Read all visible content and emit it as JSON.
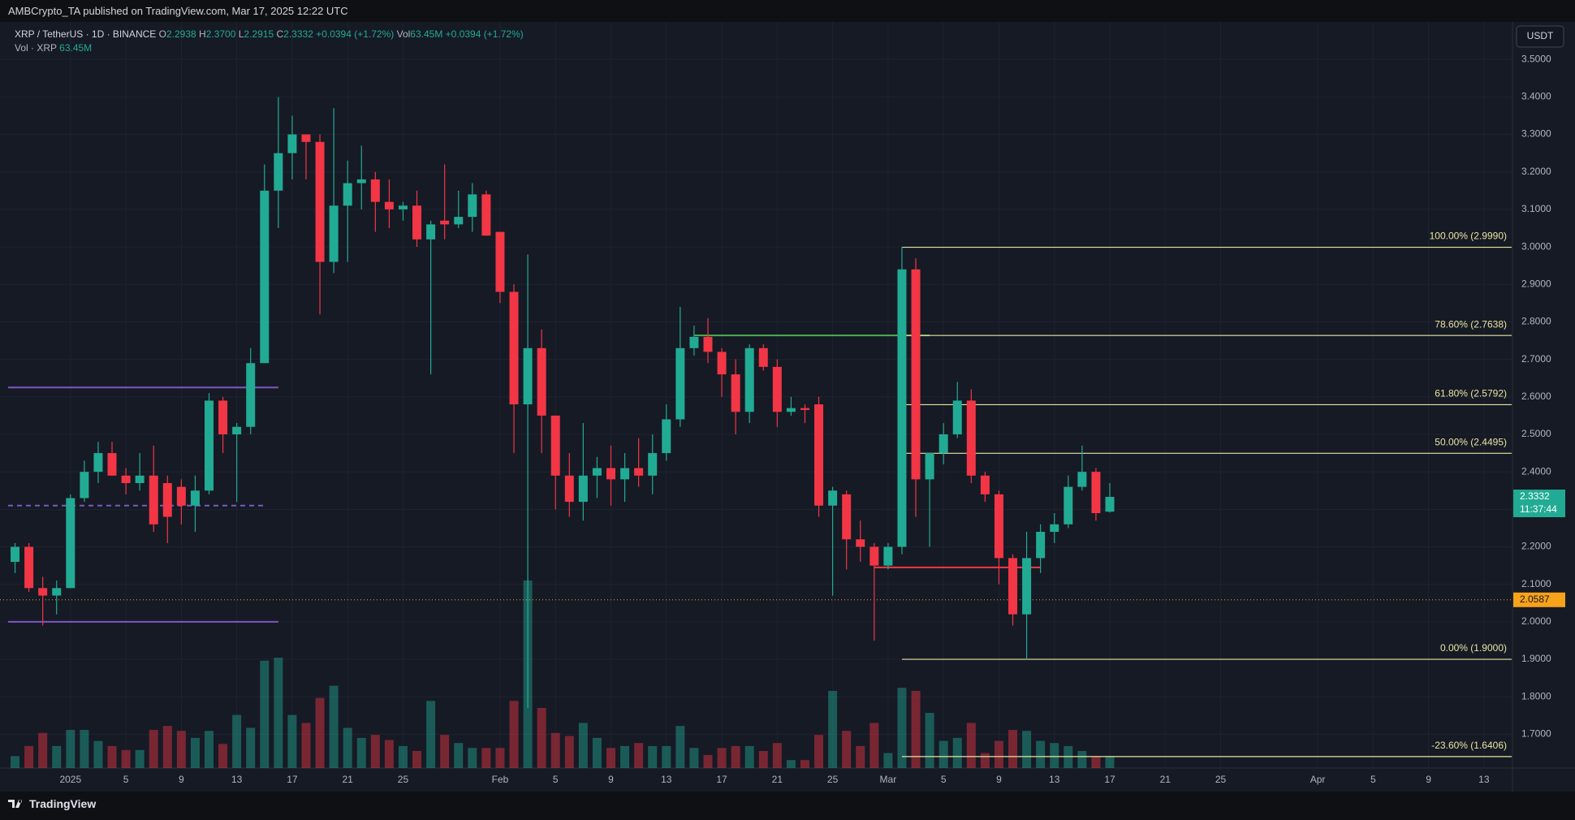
{
  "header": "AMBCrypto_TA published on TradingView.com, Mar 17, 2025 12:22 UTC",
  "footer": "TradingView",
  "chart_data": {
    "type": "candlestick",
    "legend": {
      "symbol": "XRP / TetherUS · 1D · BINANCE",
      "ohlc": [
        {
          "key": "O",
          "value": "2.2938"
        },
        {
          "key": "H",
          "value": "2.3700"
        },
        {
          "key": "L",
          "value": "2.2915"
        },
        {
          "key": "C",
          "value": "2.3332"
        }
      ],
      "change": "+0.0394 (+1.72%)",
      "volume_key": "Vol",
      "volume_value": "63.45M",
      "volume_change": "+0.0394 (+1.72%)",
      "volume_title": "Vol · XRP",
      "volume_title_value": "63.45M"
    },
    "currency": "USDT",
    "x": [
      "2024-12-28",
      "2024-12-29",
      "2024-12-30",
      "2024-12-31",
      "2025-01-01",
      "2025-01-02",
      "2025-01-03",
      "2025-01-04",
      "2025-01-05",
      "2025-01-06",
      "2025-01-07",
      "2025-01-08",
      "2025-01-09",
      "2025-01-10",
      "2025-01-11",
      "2025-01-12",
      "2025-01-13",
      "2025-01-14",
      "2025-01-15",
      "2025-01-16",
      "2025-01-17",
      "2025-01-18",
      "2025-01-19",
      "2025-01-20",
      "2025-01-21",
      "2025-01-22",
      "2025-01-23",
      "2025-01-24",
      "2025-01-25",
      "2025-01-26",
      "2025-01-27",
      "2025-01-28",
      "2025-01-29",
      "2025-01-30",
      "2025-01-31",
      "2025-02-01",
      "2025-02-02",
      "2025-02-03",
      "2025-02-04",
      "2025-02-05",
      "2025-02-06",
      "2025-02-07",
      "2025-02-08",
      "2025-02-09",
      "2025-02-10",
      "2025-02-11",
      "2025-02-12",
      "2025-02-13",
      "2025-02-14",
      "2025-02-15",
      "2025-02-16",
      "2025-02-17",
      "2025-02-18",
      "2025-02-19",
      "2025-02-20",
      "2025-02-21",
      "2025-02-22",
      "2025-02-23",
      "2025-02-24",
      "2025-02-25",
      "2025-02-26",
      "2025-02-27",
      "2025-02-28",
      "2025-03-01",
      "2025-03-02",
      "2025-03-03",
      "2025-03-04",
      "2025-03-05",
      "2025-03-06",
      "2025-03-07",
      "2025-03-08",
      "2025-03-09",
      "2025-03-10",
      "2025-03-11",
      "2025-03-12",
      "2025-03-13",
      "2025-03-14",
      "2025-03-15",
      "2025-03-16",
      "2025-03-17"
    ],
    "open": [
      2.16,
      2.2,
      2.09,
      2.07,
      2.09,
      2.33,
      2.4,
      2.45,
      2.39,
      2.37,
      2.39,
      2.37,
      2.36,
      2.31,
      2.35,
      2.59,
      2.5,
      2.52,
      2.69,
      3.15,
      3.25,
      3.3,
      3.28,
      2.96,
      3.11,
      3.17,
      3.18,
      3.12,
      3.1,
      3.11,
      3.02,
      3.07,
      3.06,
      3.08,
      3.14,
      3.04,
      2.88,
      2.58,
      2.73,
      2.55,
      2.39,
      2.32,
      2.39,
      2.41,
      2.38,
      2.41,
      2.39,
      2.45,
      2.54,
      2.73,
      2.76,
      2.72,
      2.66,
      2.56,
      2.73,
      2.68,
      2.56,
      2.57,
      2.58,
      2.31,
      2.34,
      2.22,
      2.2,
      2.15,
      2.2,
      2.94,
      2.38,
      2.45,
      2.5,
      2.59,
      2.39,
      2.34,
      2.17,
      2.02,
      2.17,
      2.24,
      2.26,
      2.36,
      2.4,
      2.2938
    ],
    "high": [
      2.21,
      2.21,
      2.12,
      2.11,
      2.34,
      2.43,
      2.48,
      2.48,
      2.41,
      2.45,
      2.47,
      2.39,
      2.38,
      2.39,
      2.61,
      2.6,
      2.53,
      2.73,
      3.22,
      3.4,
      3.35,
      3.3,
      3.3,
      3.37,
      3.23,
      3.27,
      3.2,
      3.18,
      3.12,
      3.15,
      3.07,
      3.22,
      3.15,
      3.17,
      3.15,
      3.04,
      2.9,
      2.98,
      2.78,
      2.55,
      2.45,
      2.53,
      2.44,
      2.47,
      2.45,
      2.49,
      2.5,
      2.58,
      2.84,
      2.79,
      2.81,
      2.73,
      2.7,
      2.74,
      2.74,
      2.7,
      2.6,
      2.58,
      2.6,
      2.36,
      2.35,
      2.27,
      2.21,
      2.21,
      3.0,
      2.97,
      2.45,
      2.53,
      2.64,
      2.62,
      2.4,
      2.35,
      2.18,
      2.24,
      2.26,
      2.29,
      2.39,
      2.47,
      2.41,
      2.37
    ],
    "low": [
      2.13,
      2.08,
      1.99,
      2.02,
      2.09,
      2.32,
      2.37,
      2.39,
      2.34,
      2.35,
      2.24,
      2.21,
      2.26,
      2.24,
      2.34,
      2.45,
      2.32,
      2.5,
      2.69,
      3.05,
      3.18,
      3.18,
      2.82,
      2.93,
      2.96,
      3.1,
      3.04,
      3.05,
      3.07,
      3.0,
      2.66,
      3.02,
      3.05,
      3.04,
      3.03,
      2.85,
      2.45,
      1.77,
      2.45,
      2.3,
      2.28,
      2.27,
      2.33,
      2.31,
      2.32,
      2.36,
      2.34,
      2.43,
      2.52,
      2.71,
      2.69,
      2.6,
      2.5,
      2.53,
      2.67,
      2.52,
      2.55,
      2.53,
      2.28,
      2.07,
      2.14,
      2.16,
      1.95,
      2.14,
      2.18,
      2.28,
      2.2,
      2.42,
      2.49,
      2.37,
      2.32,
      2.1,
      1.99,
      1.9,
      2.13,
      2.21,
      2.25,
      2.35,
      2.27,
      2.2915
    ],
    "close": [
      2.2,
      2.09,
      2.07,
      2.09,
      2.33,
      2.4,
      2.45,
      2.39,
      2.37,
      2.39,
      2.26,
      2.28,
      2.31,
      2.35,
      2.59,
      2.5,
      2.52,
      2.69,
      3.15,
      3.25,
      3.3,
      3.28,
      2.96,
      3.11,
      3.17,
      3.18,
      3.12,
      3.1,
      3.11,
      3.02,
      3.06,
      3.06,
      3.08,
      3.14,
      3.03,
      2.88,
      2.58,
      2.73,
      2.55,
      2.39,
      2.32,
      2.39,
      2.41,
      2.38,
      2.41,
      2.39,
      2.45,
      2.54,
      2.73,
      2.76,
      2.72,
      2.66,
      2.56,
      2.73,
      2.68,
      2.56,
      2.57,
      2.565,
      2.31,
      2.35,
      2.22,
      2.2,
      2.15,
      2.2,
      2.94,
      2.38,
      2.45,
      2.5,
      2.59,
      2.39,
      2.34,
      2.17,
      2.02,
      2.17,
      2.24,
      2.26,
      2.36,
      2.4,
      2.29,
      2.3332
    ],
    "volume": [
      63,
      116,
      185,
      116,
      201,
      201,
      143,
      116,
      95,
      95,
      201,
      222,
      196,
      159,
      196,
      127,
      280,
      212,
      566,
      582,
      280,
      238,
      370,
      434,
      212,
      159,
      175,
      148,
      116,
      90,
      354,
      175,
      132,
      106,
      106,
      106,
      354,
      989,
      317,
      185,
      169,
      238,
      159,
      106,
      116,
      132,
      116,
      116,
      222,
      106,
      69,
      106,
      116,
      116,
      90,
      132,
      42,
      42,
      175,
      407,
      196,
      116,
      238,
      79,
      423,
      407,
      291,
      143,
      159,
      238,
      79,
      143,
      201,
      196,
      143,
      132,
      116,
      90,
      63,
      63.45
    ],
    "colors": {
      "up": "#22ab94",
      "down": "#f23645"
    },
    "xlim": [
      "2024-12-27T12:00Z",
      "2025-04-15T00:00Z"
    ],
    "xticks": [
      {
        "value": "2025-01-01",
        "label": "2025"
      },
      {
        "value": "2025-01-05",
        "label": "5"
      },
      {
        "value": "2025-01-09",
        "label": "9"
      },
      {
        "value": "2025-01-13",
        "label": "13"
      },
      {
        "value": "2025-01-17",
        "label": "17"
      },
      {
        "value": "2025-01-21",
        "label": "21"
      },
      {
        "value": "2025-01-25",
        "label": "25"
      },
      {
        "value": "2025-02-01",
        "label": "Feb"
      },
      {
        "value": "2025-02-05",
        "label": "5"
      },
      {
        "value": "2025-02-09",
        "label": "9"
      },
      {
        "value": "2025-02-13",
        "label": "13"
      },
      {
        "value": "2025-02-17",
        "label": "17"
      },
      {
        "value": "2025-02-21",
        "label": "21"
      },
      {
        "value": "2025-02-25",
        "label": "25"
      },
      {
        "value": "2025-03-01",
        "label": "Mar"
      },
      {
        "value": "2025-03-05",
        "label": "5"
      },
      {
        "value": "2025-03-09",
        "label": "9"
      },
      {
        "value": "2025-03-13",
        "label": "13"
      },
      {
        "value": "2025-03-17",
        "label": "17"
      },
      {
        "value": "2025-03-21",
        "label": "21"
      },
      {
        "value": "2025-03-25",
        "label": "25"
      },
      {
        "value": "2025-04-01",
        "label": "Apr"
      },
      {
        "value": "2025-04-05",
        "label": "5"
      },
      {
        "value": "2025-04-09",
        "label": "9"
      },
      {
        "value": "2025-04-13",
        "label": "13"
      }
    ],
    "ylim": [
      1.61,
      3.6
    ],
    "yticks": [
      {
        "value": 1.7,
        "label": "1.7000"
      },
      {
        "value": 1.8,
        "label": "1.8000"
      },
      {
        "value": 1.9,
        "label": "1.9000"
      },
      {
        "value": 2.0,
        "label": "2.0000"
      },
      {
        "value": 2.1,
        "label": "2.1000"
      },
      {
        "value": 2.2,
        "label": "2.2000"
      },
      {
        "value": 2.3,
        "label": "2.3000"
      },
      {
        "value": 2.4,
        "label": "2.4000"
      },
      {
        "value": 2.5,
        "label": "2.5000"
      },
      {
        "value": 2.6,
        "label": "2.6000"
      },
      {
        "value": 2.7,
        "label": "2.7000"
      },
      {
        "value": 2.8,
        "label": "2.8000"
      },
      {
        "value": 2.9,
        "label": "2.9000"
      },
      {
        "value": 3.0,
        "label": "3.0000"
      },
      {
        "value": 3.1,
        "label": "3.1000"
      },
      {
        "value": 3.2,
        "label": "3.2000"
      },
      {
        "value": 3.3,
        "label": "3.3000"
      },
      {
        "value": 3.4,
        "label": "3.4000"
      },
      {
        "value": 3.5,
        "label": "3.5000"
      }
    ],
    "grid": true,
    "last_price": {
      "value": 2.3332,
      "countdown": "11:37:44"
    },
    "marker": {
      "value": 2.0587,
      "color": "#f7a21b"
    },
    "lines": [
      {
        "value": 2.625,
        "start": "2024-12-27T12:00Z",
        "end": "2025-01-16",
        "color": "#7e57c2",
        "style": "solid"
      },
      {
        "value": 2.0,
        "start": "2024-12-27T12:00Z",
        "end": "2025-01-16",
        "color": "#7e57c2",
        "style": "solid"
      },
      {
        "value": 2.31,
        "start": "2024-12-27T12:00Z",
        "end": "2025-01-15",
        "color": "#7e57c2",
        "style": "dashed"
      },
      {
        "value": 2.764,
        "start": "2025-02-15",
        "end": "2025-03-04",
        "color": "#4caf50",
        "style": "solid"
      },
      {
        "value": 2.145,
        "start": "2025-02-28",
        "end": "2025-03-12",
        "color": "#f23645",
        "style": "solid"
      }
    ],
    "fibonacci": {
      "start": "2025-03-02",
      "color": "#e8e4a0",
      "levels": [
        {
          "value": 2.999,
          "label": "100.00% (2.9990)"
        },
        {
          "value": 2.7638,
          "label": "78.60% (2.7638)"
        },
        {
          "value": 2.5792,
          "label": "61.80% (2.5792)"
        },
        {
          "value": 2.4495,
          "label": "50.00% (2.4495)"
        },
        {
          "value": 1.9,
          "label": "0.00% (1.9000)"
        },
        {
          "value": 1.6406,
          "label": "-23.60% (1.6406)"
        }
      ]
    }
  }
}
